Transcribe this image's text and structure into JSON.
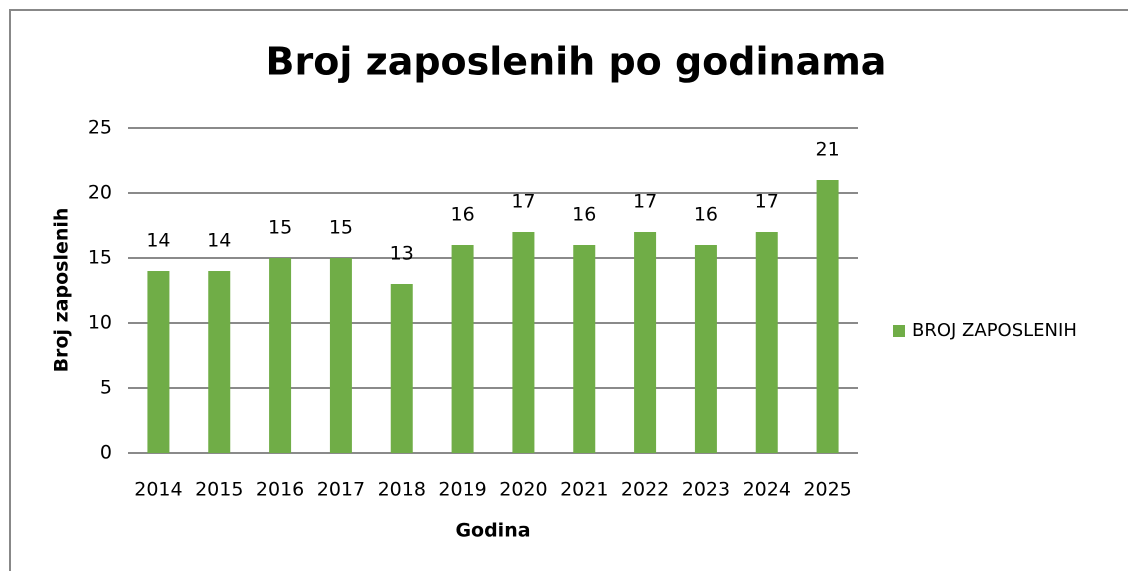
{
  "chart_data": {
    "type": "bar",
    "title": "Broj zaposlenih po godinama",
    "x_label": "Godina",
    "y_label": "Broj zaposlenih",
    "categories": [
      "2014",
      "2015",
      "2016",
      "2017",
      "2018",
      "2019",
      "2020",
      "2021",
      "2022",
      "2023",
      "2024",
      "2025"
    ],
    "series": [
      {
        "name": "BROJ ZAPOSLENIH",
        "color": "#70ad47",
        "values": [
          14,
          14,
          15,
          15,
          13,
          16,
          17,
          16,
          17,
          16,
          17,
          21
        ]
      }
    ],
    "ylim": [
      0,
      25
    ],
    "yticks": [
      0,
      5,
      10,
      15,
      20,
      25
    ],
    "grid": true,
    "legend": "right"
  }
}
